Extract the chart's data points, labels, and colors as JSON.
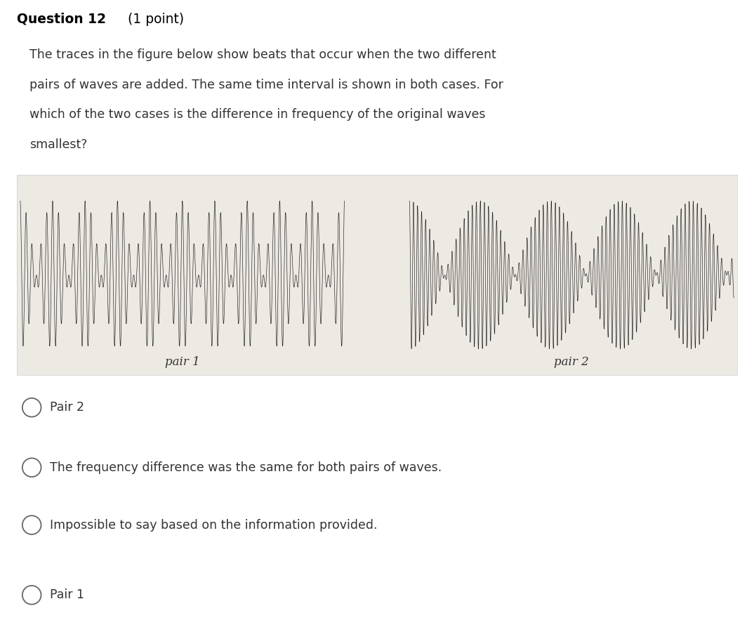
{
  "title_bold": "Question 12",
  "title_normal": " (1 point)",
  "question_text_line1": "The traces in the figure below show beats that occur when the two different",
  "question_text_line2": "pairs of waves are added. The same time interval is shown in both cases. For",
  "question_text_line3": "which of the two cases is the difference in frequency of the original waves",
  "question_text_line4": "smallest?",
  "panel_bg": "#ede9e3",
  "page_bg": "#ffffff",
  "pair1_label": "pair 1",
  "pair2_label": "pair 2",
  "options": [
    "Pair 2",
    "The frequency difference was the same for both pairs of waves.",
    "Impossible to say based on the information provided.",
    "Pair 1"
  ],
  "wave_color": "#111111",
  "text_color": "#333333",
  "title_color": "#000000",
  "pair1_carrier": 55,
  "pair1_beat": 5.0,
  "pair2_carrier": 80,
  "pair2_beat": 2.3,
  "n_points": 10000
}
